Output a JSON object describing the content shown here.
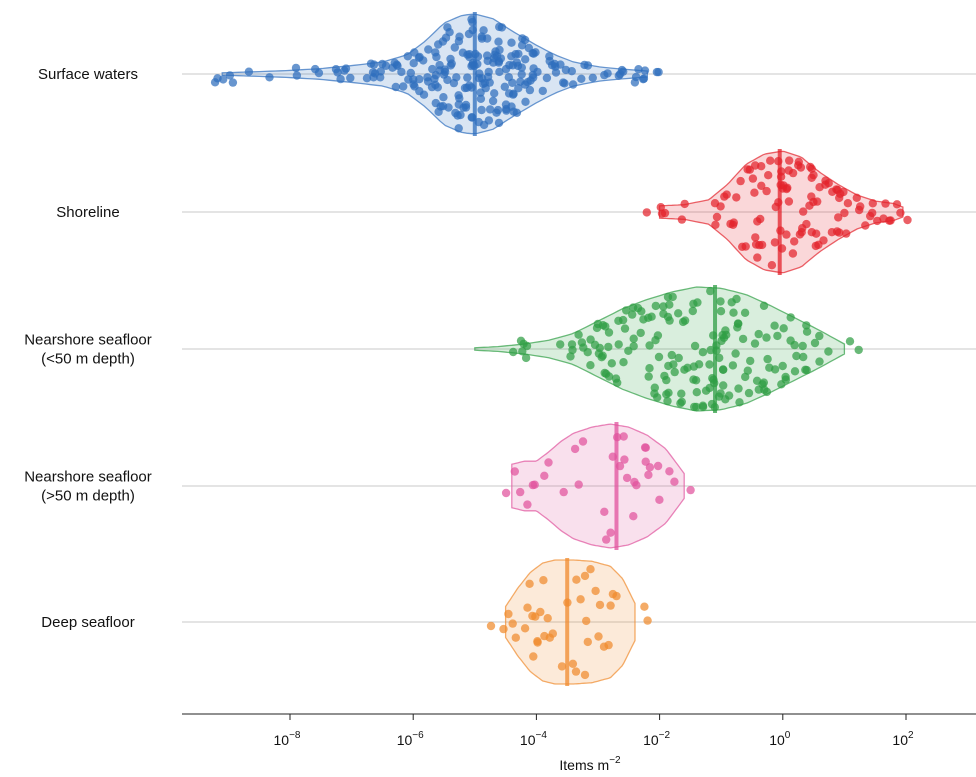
{
  "chart_data": {
    "type": "violin",
    "xscale": "log",
    "xlim_exponent": [
      -10.0,
      3.15
    ],
    "xlabel": "Items m",
    "xlabel_superscript": "−2",
    "x_ticks": [
      {
        "base": "10",
        "exp": "−8",
        "value": 1e-08
      },
      {
        "base": "10",
        "exp": "−6",
        "value": 1e-06
      },
      {
        "base": "10",
        "exp": "−4",
        "value": 0.0001
      },
      {
        "base": "10",
        "exp": "−2",
        "value": 0.01
      },
      {
        "base": "10",
        "exp": "0",
        "value": 1
      },
      {
        "base": "10",
        "exp": "2",
        "value": 100
      }
    ],
    "grid": {
      "horizontal_lines_at_categories": true
    },
    "series": [
      {
        "label_lines": [
          "Surface waters"
        ],
        "color": "#2e6dbd",
        "median_exponent": -5.0,
        "min_exponent": -9.1,
        "max_exponent": -2.2,
        "max_half_width": 60,
        "profile": [
          [
            -9.1,
            0.02
          ],
          [
            -8.5,
            0.04
          ],
          [
            -8.0,
            0.06
          ],
          [
            -7.5,
            0.09
          ],
          [
            -7.0,
            0.14
          ],
          [
            -6.5,
            0.2
          ],
          [
            -6.1,
            0.32
          ],
          [
            -5.8,
            0.55
          ],
          [
            -5.5,
            0.85
          ],
          [
            -5.2,
            0.98
          ],
          [
            -5.0,
            1.0
          ],
          [
            -4.7,
            0.92
          ],
          [
            -4.4,
            0.72
          ],
          [
            -4.0,
            0.48
          ],
          [
            -3.7,
            0.32
          ],
          [
            -3.4,
            0.2
          ],
          [
            -3.0,
            0.12
          ],
          [
            -2.6,
            0.08
          ],
          [
            -2.2,
            0.05
          ]
        ],
        "n_points": 230,
        "point_spread": 58,
        "seed": 11
      },
      {
        "label_lines": [
          "Shoreline"
        ],
        "color": "#e3222b",
        "median_exponent": -0.05,
        "min_exponent": -2.0,
        "max_exponent": 1.95,
        "max_half_width": 61,
        "profile": [
          [
            -2.0,
            0.1
          ],
          [
            -1.6,
            0.12
          ],
          [
            -1.2,
            0.2
          ],
          [
            -0.9,
            0.45
          ],
          [
            -0.6,
            0.78
          ],
          [
            -0.3,
            0.95
          ],
          [
            0.0,
            1.0
          ],
          [
            0.3,
            0.9
          ],
          [
            0.6,
            0.65
          ],
          [
            0.9,
            0.45
          ],
          [
            1.2,
            0.28
          ],
          [
            1.5,
            0.18
          ],
          [
            1.8,
            0.14
          ],
          [
            1.95,
            0.08
          ]
        ],
        "n_points": 110,
        "point_spread": 58,
        "seed": 23
      },
      {
        "label_lines": [
          "Nearshore seafloor",
          "(<50 m depth)"
        ],
        "color": "#2f9e44",
        "median_exponent": -1.1,
        "min_exponent": -5.0,
        "max_exponent": 1.0,
        "max_half_width": 62,
        "profile": [
          [
            -5.0,
            0.02
          ],
          [
            -4.6,
            0.04
          ],
          [
            -4.2,
            0.08
          ],
          [
            -3.8,
            0.14
          ],
          [
            -3.4,
            0.25
          ],
          [
            -3.0,
            0.45
          ],
          [
            -2.6,
            0.65
          ],
          [
            -2.2,
            0.8
          ],
          [
            -1.8,
            0.92
          ],
          [
            -1.4,
            1.0
          ],
          [
            -1.0,
            0.98
          ],
          [
            -0.6,
            0.88
          ],
          [
            -0.2,
            0.7
          ],
          [
            0.2,
            0.5
          ],
          [
            0.6,
            0.3
          ],
          [
            1.0,
            0.08
          ]
        ],
        "n_points": 180,
        "point_spread": 60,
        "seed": 37
      },
      {
        "label_lines": [
          "Nearshore seafloor",
          "(>50 m depth)"
        ],
        "color": "#e0529c",
        "median_exponent": -2.7,
        "min_exponent": -4.4,
        "max_exponent": -1.6,
        "max_half_width": 62,
        "profile": [
          [
            -4.4,
            0.35
          ],
          [
            -4.2,
            0.4
          ],
          [
            -4.0,
            0.4
          ],
          [
            -3.8,
            0.55
          ],
          [
            -3.6,
            0.72
          ],
          [
            -3.4,
            0.85
          ],
          [
            -3.1,
            0.95
          ],
          [
            -2.8,
            1.0
          ],
          [
            -2.5,
            0.95
          ],
          [
            -2.2,
            0.82
          ],
          [
            -1.9,
            0.6
          ],
          [
            -1.6,
            0.2
          ]
        ],
        "n_points": 34,
        "point_spread": 55,
        "seed": 53
      },
      {
        "label_lines": [
          "Deep seafloor"
        ],
        "color": "#f08a2c",
        "median_exponent": -3.5,
        "min_exponent": -4.5,
        "max_exponent": -2.4,
        "max_half_width": 62,
        "profile": [
          [
            -4.5,
            0.25
          ],
          [
            -4.3,
            0.55
          ],
          [
            -4.1,
            0.8
          ],
          [
            -3.9,
            0.95
          ],
          [
            -3.7,
            1.0
          ],
          [
            -3.4,
            1.0
          ],
          [
            -3.1,
            0.98
          ],
          [
            -2.8,
            0.9
          ],
          [
            -2.6,
            0.7
          ],
          [
            -2.4,
            0.3
          ]
        ],
        "n_points": 40,
        "point_spread": 55,
        "seed": 71
      }
    ]
  }
}
